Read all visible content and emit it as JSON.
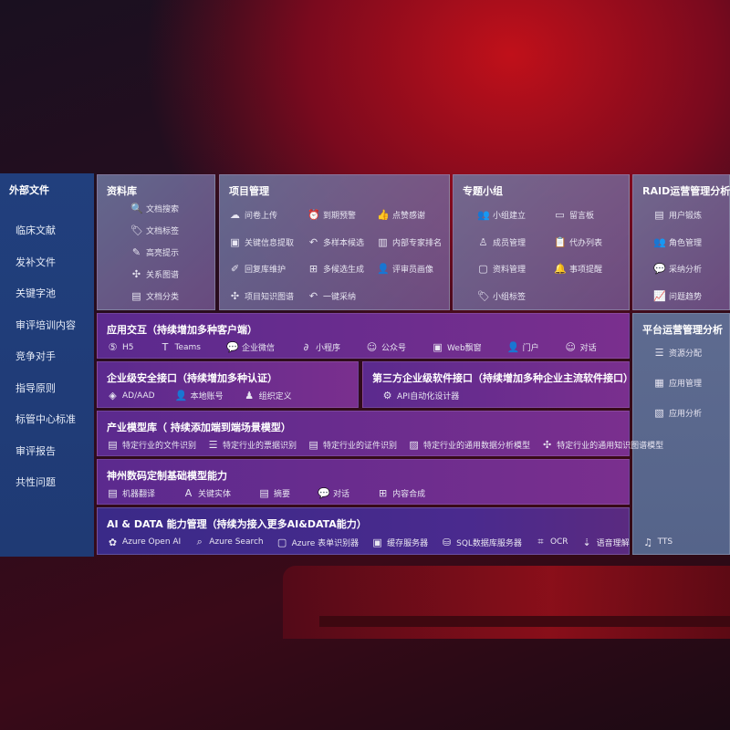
{
  "sidebar": {
    "title": "外部文件",
    "items": [
      "临床文献",
      "发补文件",
      "关键字池",
      "审评培训内容",
      "竞争对手",
      "指导原则",
      "标管中心标准",
      "审评报告",
      "共性问题"
    ]
  },
  "library": {
    "title": "资料库",
    "items": [
      {
        "label": "文档搜索",
        "icon": "doc-search-icon"
      },
      {
        "label": "文档标签",
        "icon": "tag-icon"
      },
      {
        "label": "高亮提示",
        "icon": "pen-icon"
      },
      {
        "label": "关系图谱",
        "icon": "graph-icon"
      },
      {
        "label": "文档分类",
        "icon": "doc-category-icon"
      }
    ]
  },
  "project": {
    "title": "项目管理",
    "items": [
      {
        "label": "问卷上传",
        "icon": "cloud-upload-icon"
      },
      {
        "label": "到期预警",
        "icon": "alarm-icon"
      },
      {
        "label": "点赞感谢",
        "icon": "thumbs-up-icon"
      },
      {
        "label": "关键信息提取",
        "icon": "window-icon"
      },
      {
        "label": "多样本候选",
        "icon": "reply-icon"
      },
      {
        "label": "内部专家排名",
        "icon": "ranking-icon"
      },
      {
        "label": "回复库维护",
        "icon": "edit-icon"
      },
      {
        "label": "多候选生成",
        "icon": "puzzle-icon"
      },
      {
        "label": "评审员画像",
        "icon": "user-icon"
      },
      {
        "label": "项目知识图谱",
        "icon": "graph-icon"
      },
      {
        "label": "一键采纳",
        "icon": "reply-icon"
      }
    ]
  },
  "group": {
    "title": "专题小组",
    "items": [
      {
        "label": "小组建立",
        "icon": "group-icon"
      },
      {
        "label": "留言板",
        "icon": "bbs-icon"
      },
      {
        "label": "成员管理",
        "icon": "user-add-icon"
      },
      {
        "label": "代办列表",
        "icon": "clipboard-icon"
      },
      {
        "label": "资料管理",
        "icon": "folder-icon"
      },
      {
        "label": "事项提醒",
        "icon": "bell-icon"
      },
      {
        "label": "小组标签",
        "icon": "tag-icon"
      }
    ]
  },
  "raid": {
    "title": "RAID运营管理分析",
    "items": [
      {
        "label": "用户锻炼",
        "icon": "id-card-icon"
      },
      {
        "label": "角色管理",
        "icon": "users-icon"
      },
      {
        "label": "采纳分析",
        "icon": "qa-icon"
      },
      {
        "label": "问题趋势",
        "icon": "trend-icon"
      }
    ]
  },
  "platform": {
    "title": "平台运营管理分析",
    "items": [
      {
        "label": "资源分配",
        "icon": "checklist-icon"
      },
      {
        "label": "应用管理",
        "icon": "apps-icon"
      },
      {
        "label": "应用分析",
        "icon": "analysis-icon"
      }
    ]
  },
  "interaction": {
    "title": "应用交互（持续增加多种客户端）",
    "items": [
      {
        "label": "H5",
        "icon": "html5-icon"
      },
      {
        "label": "Teams",
        "icon": "teams-icon"
      },
      {
        "label": "企业微信",
        "icon": "wechat-icon"
      },
      {
        "label": "小程序",
        "icon": "miniprogram-icon"
      },
      {
        "label": "公众号",
        "icon": "official-account-icon"
      },
      {
        "label": "Web飘窗",
        "icon": "window-icon"
      },
      {
        "label": "门户",
        "icon": "portal-icon"
      },
      {
        "label": "对话",
        "icon": "chat-icon"
      }
    ]
  },
  "security": {
    "title": "企业级安全接口（持续增加多种认证）",
    "items": [
      {
        "label": "AD/AAD",
        "icon": "ad-icon"
      },
      {
        "label": "本地账号",
        "icon": "account-icon"
      },
      {
        "label": "组织定义",
        "icon": "org-icon"
      }
    ]
  },
  "thirdparty": {
    "title": "第三方企业级软件接口（持续增加多种企业主流软件接口）",
    "items": [
      {
        "label": "API自动化设计器",
        "icon": "gear-icon"
      }
    ]
  },
  "industry": {
    "title": "产业模型库（ 持续添加端到端场景模型）",
    "items": [
      {
        "label": "特定行业的文件识别",
        "icon": "file-icon"
      },
      {
        "label": "特定行业的票据识别",
        "icon": "receipt-icon"
      },
      {
        "label": "特定行业的证件识别",
        "icon": "id-card-icon"
      },
      {
        "label": "特定行业的通用数据分析模型",
        "icon": "chart-icon"
      },
      {
        "label": "特定行业的通用知识图谱模型",
        "icon": "graph-icon"
      }
    ]
  },
  "base": {
    "title": "神州数码定制基础模型能力",
    "items": [
      {
        "label": "机器翻译",
        "icon": "translate-icon"
      },
      {
        "label": "关键实体",
        "icon": "entity-icon"
      },
      {
        "label": "摘要",
        "icon": "summary-icon"
      },
      {
        "label": "对话",
        "icon": "chat-bubble-icon"
      },
      {
        "label": "内容合成",
        "icon": "puzzle-icon"
      }
    ]
  },
  "aidata": {
    "title": "AI & DATA 能力管理（持续为接入更多AI&DATA能力）",
    "items": [
      {
        "label": "Azure Open AI",
        "icon": "openai-icon"
      },
      {
        "label": "Azure Search",
        "icon": "search-icon"
      },
      {
        "label": "Azure 表单识别器",
        "icon": "form-icon"
      },
      {
        "label": "缓存服务器",
        "icon": "cache-icon"
      },
      {
        "label": "SQL数据库服务器",
        "icon": "database-icon"
      },
      {
        "label": "OCR",
        "icon": "ocr-icon"
      },
      {
        "label": "语音理解",
        "icon": "speech-icon"
      },
      {
        "label": "TTS",
        "icon": "tts-icon"
      }
    ]
  }
}
